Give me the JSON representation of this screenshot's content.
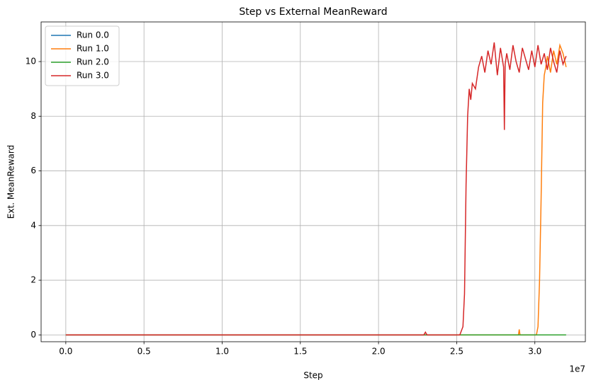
{
  "chart_data": {
    "type": "line",
    "title": "Step vs External MeanReward",
    "x_label": "Step",
    "y_label": "Ext. MeanReward",
    "x_offset_label": "1e7",
    "xlim": [
      -1580000,
      33230000
    ],
    "ylim": [
      -0.25,
      11.45
    ],
    "xticks": [
      {
        "value": 0,
        "label": "0.0"
      },
      {
        "value": 5000000,
        "label": "0.5"
      },
      {
        "value": 10000000,
        "label": "1.0"
      },
      {
        "value": 15000000,
        "label": "1.5"
      },
      {
        "value": 20000000,
        "label": "2.0"
      },
      {
        "value": 25000000,
        "label": "2.5"
      },
      {
        "value": 30000000,
        "label": "3.0"
      }
    ],
    "yticks": [
      0,
      2,
      4,
      6,
      8,
      10
    ],
    "grid": true,
    "legend": "upper-left",
    "series": [
      {
        "name": "Run 0.0",
        "color": "#1f77b4",
        "x": [
          0,
          25000000
        ],
        "values": [
          0,
          0
        ]
      },
      {
        "name": "Run 1.0",
        "color": "#ff7f0e",
        "x": [
          0,
          28950000,
          29000000,
          29050000,
          30100000,
          30200000,
          30300000,
          30400000,
          30500000,
          30600000,
          30700000,
          30800000,
          31000000,
          31200000,
          31400000,
          31600000,
          31800000,
          32000000
        ],
        "values": [
          0,
          0,
          0.2,
          0,
          0,
          0.3,
          2,
          5,
          8.5,
          9.5,
          9.8,
          10.2,
          9.6,
          10.4,
          9.9,
          10.6,
          10.3,
          9.8
        ]
      },
      {
        "name": "Run 2.0",
        "color": "#2ca02c",
        "x": [
          0,
          32000000
        ],
        "values": [
          0,
          0
        ]
      },
      {
        "name": "Run 3.0",
        "color": "#d62728",
        "x": [
          0,
          22900000,
          23000000,
          23100000,
          25200000,
          25400000,
          25500000,
          25600000,
          25700000,
          25800000,
          25900000,
          26000000,
          26200000,
          26400000,
          26600000,
          26800000,
          27000000,
          27200000,
          27400000,
          27600000,
          27800000,
          28000000,
          28050000,
          28100000,
          28200000,
          28400000,
          28600000,
          28800000,
          29000000,
          29200000,
          29400000,
          29600000,
          29800000,
          30000000,
          30200000,
          30400000,
          30600000,
          30800000,
          31000000,
          31200000,
          31400000,
          31600000,
          31800000,
          32000000
        ],
        "values": [
          0,
          0,
          0.1,
          0,
          0,
          0.3,
          1.5,
          5.5,
          8.0,
          9.0,
          8.6,
          9.2,
          9.0,
          9.8,
          10.2,
          9.6,
          10.4,
          9.9,
          10.7,
          9.5,
          10.5,
          9.8,
          7.5,
          9.9,
          10.3,
          9.7,
          10.6,
          10.0,
          9.6,
          10.5,
          10.1,
          9.7,
          10.4,
          9.8,
          10.6,
          9.9,
          10.3,
          9.7,
          10.5,
          10.0,
          9.6,
          10.4,
          9.9,
          10.2
        ]
      }
    ]
  }
}
